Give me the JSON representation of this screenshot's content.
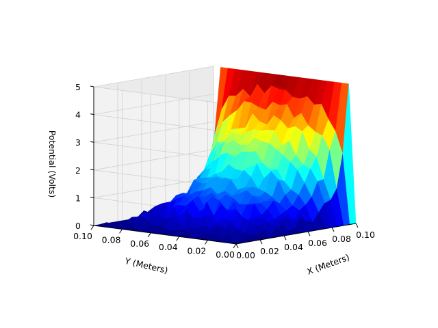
{
  "chart_data": {
    "type": "surface",
    "title": "",
    "xlabel": "X (Meters)",
    "ylabel": "Y (Meters)",
    "zlabel": "Potential (Volts)",
    "xlim": [
      0.0,
      0.1
    ],
    "ylim": [
      0.0,
      0.1
    ],
    "zlim": [
      0,
      5
    ],
    "x_ticks": [
      "0.00",
      "0.02",
      "0.04",
      "0.06",
      "0.08",
      "0.10"
    ],
    "y_ticks": [
      "0.10",
      "0.08",
      "0.06",
      "0.04",
      "0.02",
      "0.00"
    ],
    "z_ticks": [
      "0",
      "1",
      "2",
      "3",
      "4",
      "5"
    ],
    "colormap": "jet",
    "grid": true,
    "boundary_conditions": {
      "x_max_edge_volts": 5,
      "other_edges_volts": 0
    },
    "surface_grid_points": 21,
    "random_seed": 7
  }
}
